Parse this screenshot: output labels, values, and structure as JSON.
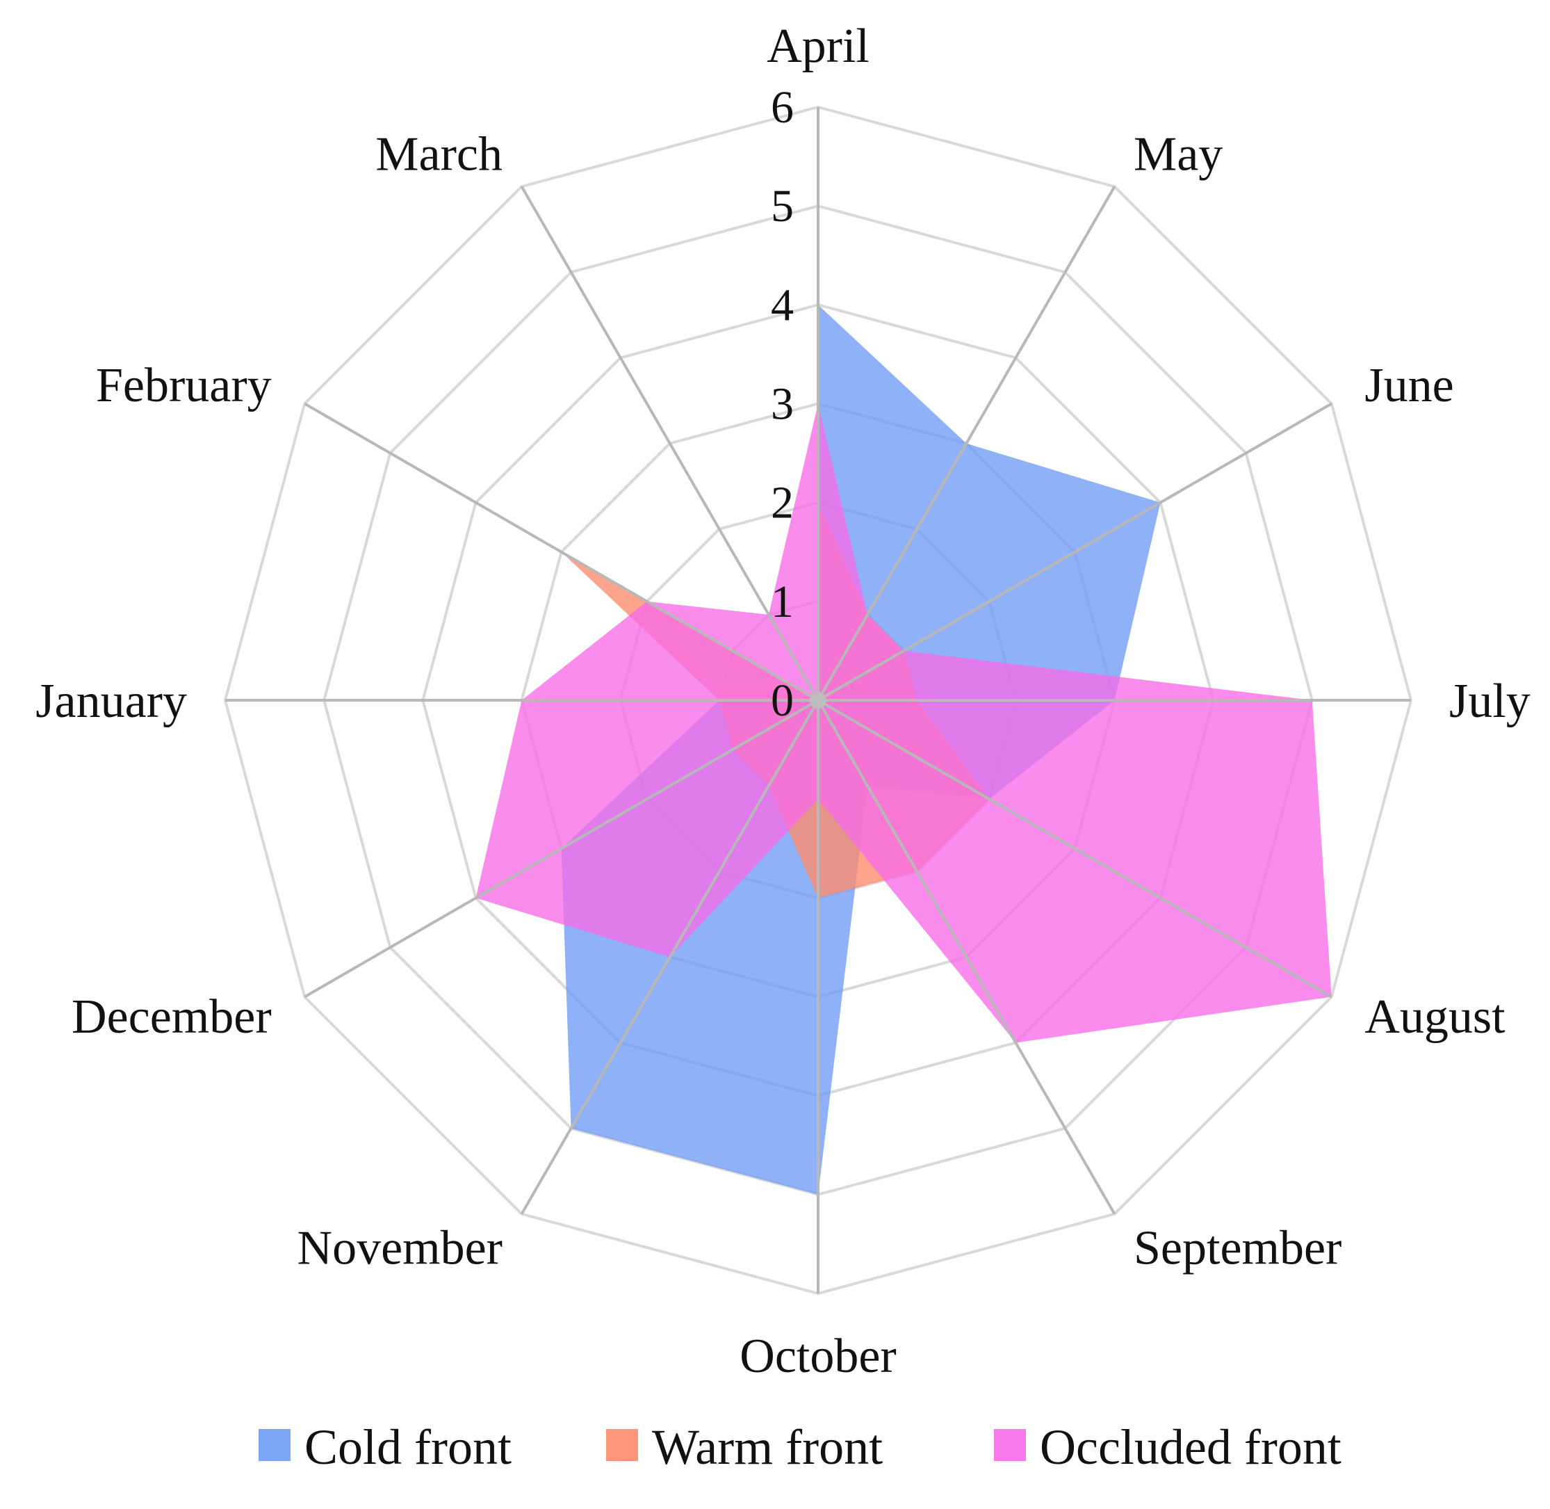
{
  "chart_data": {
    "type": "radar",
    "categories": [
      "April",
      "May",
      "June",
      "July",
      "August",
      "September",
      "October",
      "November",
      "December",
      "January",
      "February",
      "March"
    ],
    "rlim": [
      0,
      6
    ],
    "ticks": [
      "0",
      "1",
      "2",
      "3",
      "4",
      "5",
      "6"
    ],
    "grid": true,
    "legend_position": "bottom",
    "series": [
      {
        "name": "Cold front",
        "color": "#6E9BF5",
        "values": [
          4,
          3,
          4,
          3,
          2,
          1,
          5,
          5,
          3,
          1,
          0,
          0
        ]
      },
      {
        "name": "Warm front",
        "color": "#FF8A6B",
        "values": [
          2,
          1,
          1,
          1,
          2,
          2,
          2,
          1,
          1,
          1,
          3,
          0
        ]
      },
      {
        "name": "Occluded front",
        "color": "#F76BE8",
        "values": [
          3,
          1,
          1,
          5,
          6,
          4,
          1,
          3,
          4,
          3,
          2,
          1
        ]
      }
    ]
  }
}
